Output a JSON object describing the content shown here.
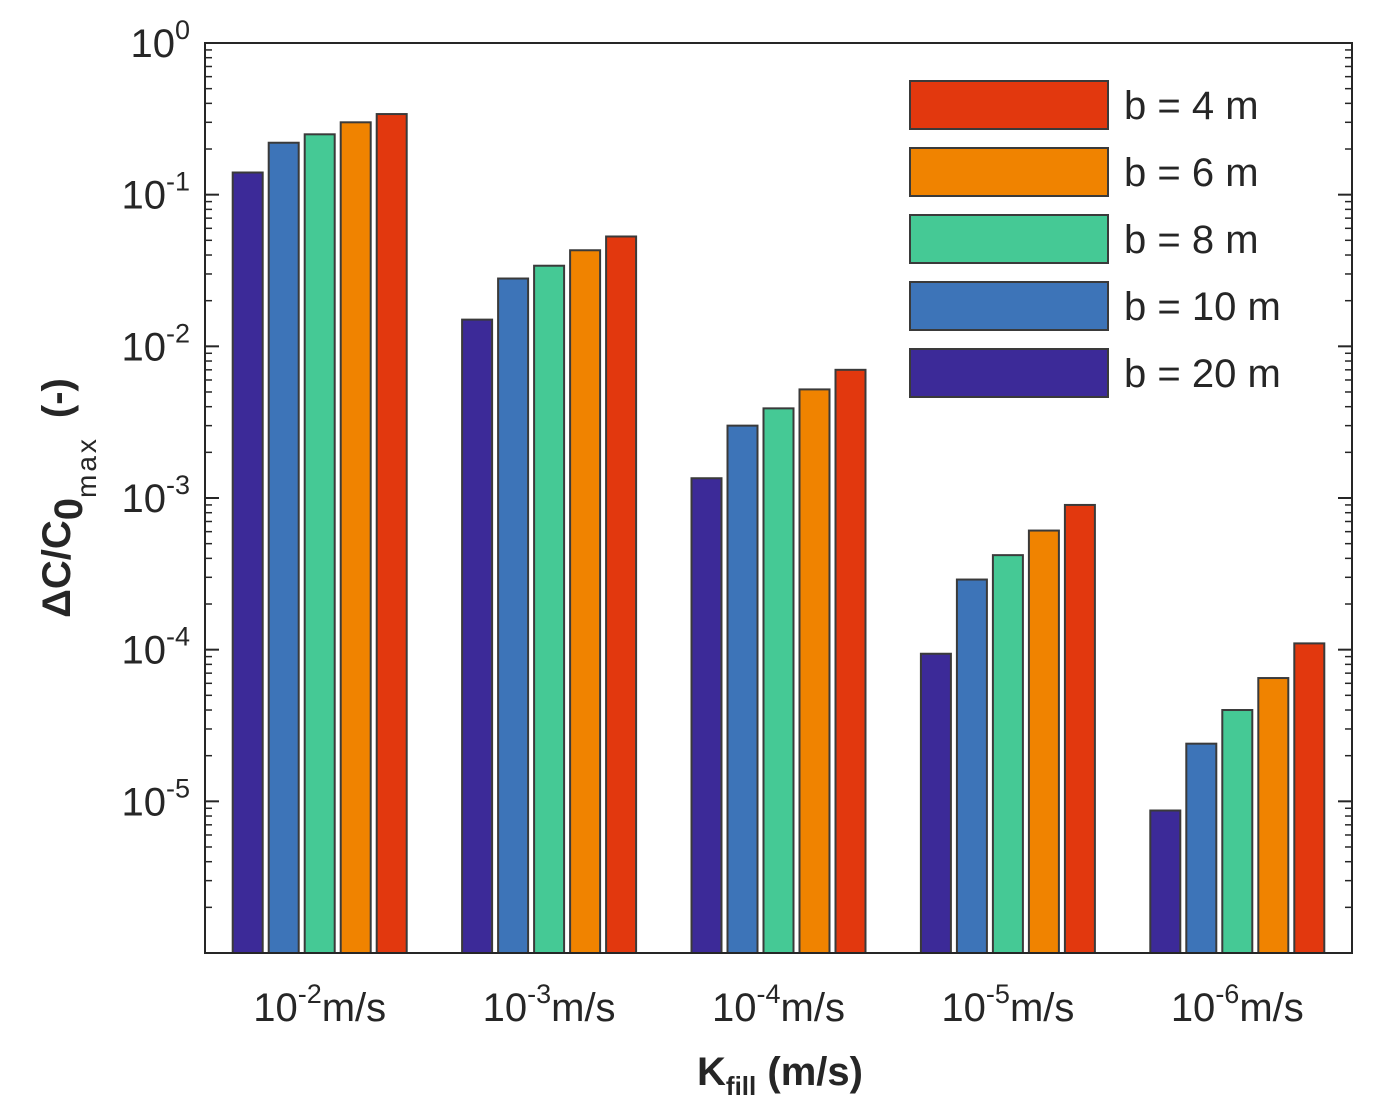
{
  "chart_data": {
    "type": "bar",
    "yscale": "log",
    "ylim": [
      1e-06,
      1
    ],
    "y_ticks": [
      {
        "value": 1,
        "base": "10",
        "exp": "0"
      },
      {
        "value": 0.1,
        "base": "10",
        "exp": "-1"
      },
      {
        "value": 0.01,
        "base": "10",
        "exp": "-2"
      },
      {
        "value": 0.001,
        "base": "10",
        "exp": "-3"
      },
      {
        "value": 0.0001,
        "base": "10",
        "exp": "-4"
      },
      {
        "value": 1e-05,
        "base": "10",
        "exp": "-5"
      }
    ],
    "categories": [
      {
        "base": "10",
        "exp": "-2",
        "unit": "m/s"
      },
      {
        "base": "10",
        "exp": "-3",
        "unit": "m/s"
      },
      {
        "base": "10",
        "exp": "-4",
        "unit": "m/s"
      },
      {
        "base": "10",
        "exp": "-5",
        "unit": "m/s"
      },
      {
        "base": "10",
        "exp": "-6",
        "unit": "m/s"
      }
    ],
    "xlabel": {
      "main": "K",
      "sub": "fill",
      "rest": " (m/s)"
    },
    "ylabel": {
      "main": "ΔC/C",
      "sub": "0",
      "subsub": "max",
      "rest": "(-)"
    },
    "legend_position": "top-right",
    "grid": false,
    "series": [
      {
        "name": "b = 20 m",
        "color": "#3c2a98",
        "values": [
          0.14,
          0.015,
          0.00135,
          9.4e-05,
          8.7e-06
        ]
      },
      {
        "name": "b = 10 m",
        "color": "#3d74b8",
        "values": [
          0.22,
          0.028,
          0.003,
          0.00029,
          2.4e-05
        ]
      },
      {
        "name": "b = 8 m",
        "color": "#45c995",
        "values": [
          0.25,
          0.034,
          0.0039,
          0.00042,
          4e-05
        ]
      },
      {
        "name": "b = 6 m",
        "color": "#f08300",
        "values": [
          0.3,
          0.043,
          0.0052,
          0.00061,
          6.5e-05
        ]
      },
      {
        "name": "b = 4 m",
        "color": "#e2380e",
        "values": [
          0.34,
          0.053,
          0.007,
          0.0009,
          0.00011
        ]
      }
    ],
    "legend_order": [
      4,
      3,
      2,
      1,
      0
    ]
  }
}
